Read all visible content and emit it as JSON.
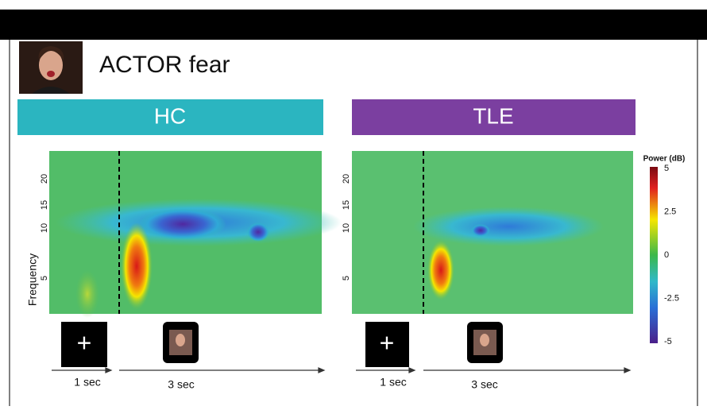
{
  "header": {
    "title": "ACTOR fear"
  },
  "panels": [
    {
      "title": "HC",
      "y_label": "Frequency",
      "yticks": [
        5,
        10,
        15,
        20
      ],
      "fixation": "+",
      "timeline": [
        "1 sec",
        "3 sec"
      ]
    },
    {
      "title": "TLE",
      "yticks": [
        5,
        10,
        15,
        20
      ],
      "fixation": "+",
      "timeline": [
        "1 sec",
        "3 sec"
      ]
    }
  ],
  "colorbar": {
    "title": "Power (dB)",
    "ticks": [
      5,
      2.5,
      0,
      -2.5,
      -5
    ]
  }
}
